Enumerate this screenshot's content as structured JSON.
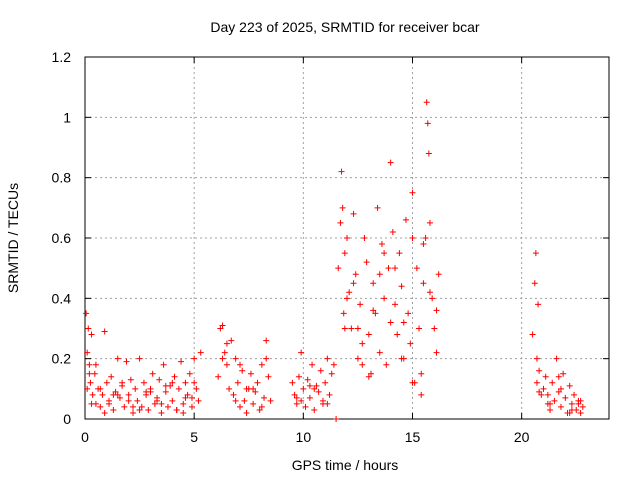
{
  "chart_data": {
    "type": "scatter",
    "title": "Day 223 of 2025, SRMTID for receiver bcar",
    "xlabel": "GPS time / hours",
    "ylabel": "SRMTID / TECUs",
    "xlim": [
      0,
      24
    ],
    "ylim": [
      0,
      1.2
    ],
    "x_ticks": [
      0,
      5,
      10,
      15,
      20
    ],
    "x_tick_labels": [
      "0",
      "5",
      "10",
      "15",
      "20"
    ],
    "y_ticks": [
      0,
      0.2,
      0.4,
      0.6,
      0.8,
      1.0,
      1.2
    ],
    "y_tick_labels": [
      "0",
      "0.2",
      "0.4",
      "0.6",
      "0.8",
      "1",
      "1.2"
    ],
    "grid": true,
    "marker": "plus",
    "color": "#ff0000",
    "series": [
      {
        "name": "SRMTID",
        "x": [
          0.05,
          0.1,
          0.15,
          0.2,
          0.25,
          0.3,
          0.35,
          0.45,
          0.5,
          0.6,
          0.7,
          0.8,
          0.9,
          1.0,
          1.1,
          1.2,
          1.3,
          1.4,
          1.5,
          1.6,
          1.7,
          1.8,
          1.9,
          2.0,
          2.1,
          2.2,
          2.3,
          2.4,
          2.5,
          2.6,
          2.7,
          2.8,
          2.9,
          3.0,
          3.1,
          3.2,
          3.3,
          3.4,
          3.5,
          3.6,
          3.7,
          3.8,
          3.9,
          4.0,
          4.1,
          4.2,
          4.3,
          4.4,
          4.5,
          4.6,
          4.7,
          4.8,
          4.9,
          5.0,
          5.1,
          5.2,
          5.3,
          6.1,
          6.2,
          6.3,
          6.4,
          6.5,
          6.6,
          6.7,
          6.8,
          6.9,
          7.0,
          7.1,
          7.2,
          7.3,
          7.4,
          7.5,
          7.6,
          7.7,
          7.8,
          7.9,
          8.0,
          8.1,
          8.2,
          8.3,
          8.4,
          8.5,
          9.5,
          9.6,
          9.7,
          9.8,
          9.9,
          10.0,
          10.1,
          10.2,
          10.3,
          10.4,
          10.5,
          10.6,
          10.7,
          10.8,
          10.9,
          11.0,
          11.1,
          11.2,
          11.3,
          11.4,
          11.5,
          11.6,
          11.7,
          11.75,
          11.8,
          11.85,
          11.9,
          12.0,
          12.1,
          12.2,
          12.3,
          12.4,
          12.5,
          12.6,
          12.7,
          12.8,
          12.9,
          13.0,
          13.1,
          13.2,
          13.3,
          13.4,
          13.5,
          13.6,
          13.7,
          13.8,
          13.9,
          14.0,
          14.1,
          14.2,
          14.3,
          14.4,
          14.5,
          14.6,
          14.7,
          14.8,
          14.9,
          15.0,
          15.1,
          15.2,
          15.3,
          15.4,
          15.5,
          15.6,
          15.65,
          15.7,
          15.75,
          15.8,
          15.9,
          16.0,
          16.1,
          16.2,
          20.5,
          20.6,
          20.65,
          20.7,
          20.75,
          20.8,
          20.9,
          21.0,
          21.1,
          21.2,
          21.3,
          21.4,
          21.5,
          21.6,
          21.7,
          21.8,
          21.9,
          22.0,
          22.1,
          22.2,
          22.3,
          22.4,
          22.5,
          22.6,
          22.7,
          22.8,
          0.1,
          0.3,
          0.5,
          0.9,
          1.3,
          1.7,
          2.2,
          2.8,
          3.3,
          3.7,
          4.2,
          4.6,
          5.0,
          6.3,
          6.9,
          7.4,
          8.1,
          9.7,
          10.3,
          10.9,
          11.9,
          12.3,
          12.7,
          13.2,
          13.7,
          14.2,
          14.6,
          15.0,
          15.5,
          16.1,
          20.8,
          21.3,
          21.8,
          22.3,
          22.7,
          0.2,
          0.7,
          1.1,
          1.5,
          2.0,
          2.5,
          3.0,
          3.5,
          4.0,
          4.5,
          4.9,
          6.5,
          7.1,
          7.7,
          8.3,
          9.9,
          10.5,
          11.1,
          12.0,
          12.5,
          13.0,
          13.5,
          14.0,
          14.5,
          15.0,
          15.4,
          15.8,
          20.7,
          21.2,
          21.7,
          22.2,
          22.6
        ],
        "y": [
          0.35,
          0.22,
          0.3,
          0.18,
          0.12,
          0.28,
          0.08,
          0.15,
          0.05,
          0.1,
          0.04,
          0.08,
          0.29,
          0.12,
          0.06,
          0.14,
          0.03,
          0.09,
          0.2,
          0.07,
          0.11,
          0.04,
          0.19,
          0.08,
          0.13,
          0.02,
          0.1,
          0.06,
          0.2,
          0.04,
          0.12,
          0.08,
          0.03,
          0.1,
          0.15,
          0.05,
          0.07,
          0.13,
          0.02,
          0.18,
          0.09,
          0.04,
          0.11,
          0.06,
          0.14,
          0.03,
          0.1,
          0.19,
          0.05,
          0.12,
          0.08,
          0.15,
          0.04,
          0.2,
          0.1,
          0.06,
          0.22,
          0.14,
          0.3,
          0.31,
          0.22,
          0.18,
          0.1,
          0.26,
          0.08,
          0.2,
          0.12,
          0.04,
          0.16,
          0.06,
          0.02,
          0.1,
          0.15,
          0.05,
          0.09,
          0.12,
          0.03,
          0.18,
          0.07,
          0.26,
          0.14,
          0.06,
          0.12,
          0.08,
          0.05,
          0.14,
          0.22,
          0.1,
          0.04,
          0.13,
          0.07,
          0.18,
          0.03,
          0.11,
          0.09,
          0.16,
          0.06,
          0.12,
          0.2,
          0.08,
          0.15,
          0.18,
          0.0,
          0.5,
          0.65,
          0.82,
          0.7,
          0.35,
          0.55,
          0.6,
          0.42,
          0.3,
          0.68,
          0.48,
          0.2,
          0.38,
          0.25,
          0.6,
          0.52,
          0.28,
          0.15,
          0.45,
          0.35,
          0.7,
          0.22,
          0.58,
          0.4,
          0.18,
          0.5,
          0.85,
          0.62,
          0.38,
          0.28,
          0.55,
          0.44,
          0.2,
          0.66,
          0.35,
          0.25,
          0.75,
          0.12,
          0.5,
          0.3,
          0.08,
          0.45,
          0.6,
          1.05,
          0.98,
          0.88,
          0.65,
          0.4,
          0.3,
          0.22,
          0.48,
          0.28,
          0.45,
          0.55,
          0.2,
          0.38,
          0.16,
          0.08,
          0.1,
          0.14,
          0.05,
          0.03,
          0.12,
          0.06,
          0.2,
          0.09,
          0.04,
          0.15,
          0.07,
          0.02,
          0.11,
          0.05,
          0.08,
          0.03,
          0.06,
          0.02,
          0.04,
          0.1,
          0.05,
          0.18,
          0.02,
          0.08,
          0.12,
          0.04,
          0.09,
          0.06,
          0.11,
          0.03,
          0.07,
          0.12,
          0.2,
          0.06,
          0.1,
          0.04,
          0.07,
          0.11,
          0.05,
          0.3,
          0.45,
          0.18,
          0.36,
          0.55,
          0.5,
          0.32,
          0.12,
          0.58,
          0.36,
          0.09,
          0.05,
          0.1,
          0.03,
          0.06,
          0.15,
          0.1,
          0.05,
          0.08,
          0.06,
          0.03,
          0.09,
          0.05,
          0.12,
          0.02,
          0.07,
          0.25,
          0.18,
          0.1,
          0.2,
          0.06,
          0.1,
          0.05,
          0.4,
          0.3,
          0.14,
          0.48,
          0.32,
          0.2,
          0.6,
          0.15,
          0.42,
          0.12,
          0.08,
          0.14,
          0.02,
          0.05
        ]
      }
    ]
  }
}
